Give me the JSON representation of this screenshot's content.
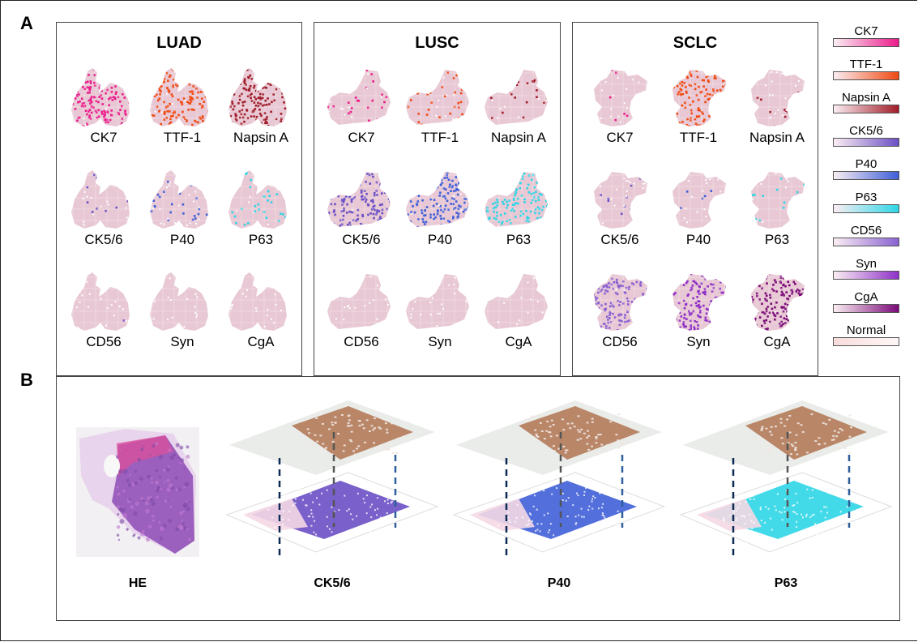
{
  "panels": {
    "A": {
      "letter": "A",
      "groups": [
        {
          "title": "LUAD",
          "shape": "luad",
          "markers": [
            {
              "label": "CK7",
              "legend": "CK7",
              "intensity": 0.9
            },
            {
              "label": "TTF-1",
              "legend": "TTF-1",
              "intensity": 0.9
            },
            {
              "label": "Napsin A",
              "legend": "Napsin A",
              "intensity": 0.9
            },
            {
              "label": "CK5/6",
              "legend": "CK5/6",
              "intensity": 0.12
            },
            {
              "label": "P40",
              "legend": "P40",
              "intensity": 0.14
            },
            {
              "label": "P63",
              "legend": "P63",
              "intensity": 0.18
            },
            {
              "label": "CD56",
              "legend": "CD56",
              "intensity": 0.01
            },
            {
              "label": "Syn",
              "legend": "Syn",
              "intensity": 0.01
            },
            {
              "label": "CgA",
              "legend": "CgA",
              "intensity": 0.02
            }
          ]
        },
        {
          "title": "LUSC",
          "shape": "lusc",
          "markers": [
            {
              "label": "CK7",
              "legend": "CK7",
              "intensity": 0.18
            },
            {
              "label": "TTF-1",
              "legend": "TTF-1",
              "intensity": 0.2
            },
            {
              "label": "Napsin A",
              "legend": "Napsin A",
              "intensity": 0.2
            },
            {
              "label": "CK5/6",
              "legend": "CK5/6",
              "intensity": 0.85
            },
            {
              "label": "P40",
              "legend": "P40",
              "intensity": 0.85
            },
            {
              "label": "P63",
              "legend": "P63",
              "intensity": 0.85
            },
            {
              "label": "CD56",
              "legend": "CD56",
              "intensity": 0.0
            },
            {
              "label": "Syn",
              "legend": "Syn",
              "intensity": 0.0
            },
            {
              "label": "CgA",
              "legend": "CgA",
              "intensity": 0.0
            }
          ]
        },
        {
          "title": "SCLC",
          "shape": "sclc",
          "markers": [
            {
              "label": "CK7",
              "legend": "CK7",
              "intensity": 0.04
            },
            {
              "label": "TTF-1",
              "legend": "TTF-1",
              "intensity": 0.92
            },
            {
              "label": "Napsin A",
              "legend": "Napsin A",
              "intensity": 0.05
            },
            {
              "label": "CK5/6",
              "legend": "CK5/6",
              "intensity": 0.05
            },
            {
              "label": "P40",
              "legend": "P40",
              "intensity": 0.05
            },
            {
              "label": "P63",
              "legend": "P63",
              "intensity": 0.05
            },
            {
              "label": "CD56",
              "legend": "CD56",
              "intensity": 0.9
            },
            {
              "label": "Syn",
              "legend": "Syn",
              "intensity": 0.92
            },
            {
              "label": "CgA",
              "legend": "CgA",
              "intensity": 0.92
            }
          ]
        }
      ],
      "legend": [
        {
          "label": "CK7",
          "color": "#ec1c8c"
        },
        {
          "label": "TTF-1",
          "color": "#f04a12"
        },
        {
          "label": "Napsin A",
          "color": "#a01c28"
        },
        {
          "label": "CK5/6",
          "color": "#6a4fc4"
        },
        {
          "label": "P40",
          "color": "#3f5fd8"
        },
        {
          "label": "P63",
          "color": "#2ed6e6"
        },
        {
          "label": "CD56",
          "color": "#8a62d2"
        },
        {
          "label": "Syn",
          "color": "#8e30c8"
        },
        {
          "label": "CgA",
          "color": "#7a0a78"
        },
        {
          "label": "Normal",
          "color": "#f6dede"
        }
      ],
      "normal_color": "#e8c8d4"
    },
    "B": {
      "letter": "B",
      "he_label": "HE",
      "stacks": [
        {
          "label": "CK5/6",
          "color": "#6a4fc4"
        },
        {
          "label": "P40",
          "color": "#3f5fd8"
        },
        {
          "label": "P63",
          "color": "#2ed6e6"
        }
      ],
      "ihc_color": "#a8643c",
      "dash_color": "#2c5f9c"
    }
  }
}
